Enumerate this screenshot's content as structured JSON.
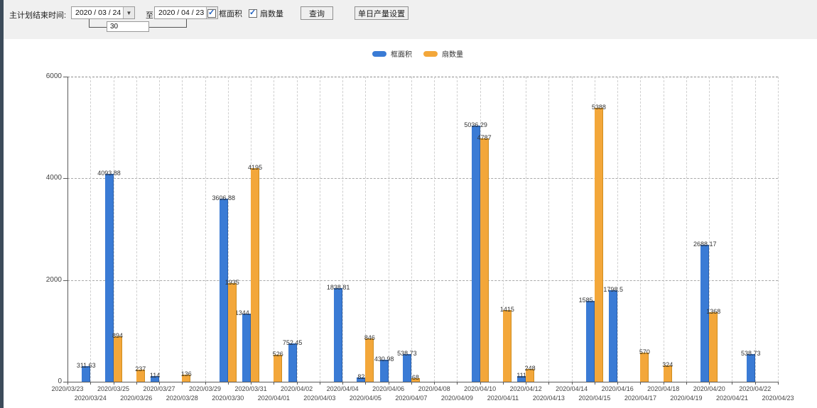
{
  "toolbar": {
    "label": "主计划结束时间:",
    "date_from": "2020 / 03 / 24",
    "to_label": "至:",
    "date_to": "2020 / 04 / 23",
    "days_value": "30",
    "checkbox_area_label": "框面积",
    "checkbox_fan_label": "扇数量",
    "query_button": "查询",
    "daily_output_button": "单日产量设置",
    "dropdown_icon": "▼"
  },
  "colors": {
    "series_area": "#3a7bd5",
    "series_fan": "#f3a73a",
    "left_strip": "#3c4b5a"
  },
  "chart_data": {
    "type": "bar",
    "title": "",
    "xlabel": "",
    "ylabel": "",
    "ylim": [
      0,
      6000
    ],
    "yticks": [
      0,
      2000,
      4000,
      6000
    ],
    "grid": "dashed",
    "legend_position": "top-center",
    "categories": [
      "2020/03/23",
      "2020/03/24",
      "2020/03/25",
      "2020/03/26",
      "2020/03/27",
      "2020/03/28",
      "2020/03/29",
      "2020/03/30",
      "2020/03/31",
      "2020/04/01",
      "2020/04/02",
      "2020/04/03",
      "2020/04/04",
      "2020/04/05",
      "2020/04/06",
      "2020/04/07",
      "2020/04/08",
      "2020/04/09",
      "2020/04/10",
      "2020/04/11",
      "2020/04/12",
      "2020/04/13",
      "2020/04/14",
      "2020/04/15",
      "2020/04/16",
      "2020/04/17",
      "2020/04/18",
      "2020/04/19",
      "2020/04/20",
      "2020/04/21",
      "2020/04/22",
      "2020/04/23"
    ],
    "series": [
      {
        "name": "框面积",
        "color": "#3a7bd5",
        "values": [
          null,
          311.63,
          4093.88,
          null,
          114,
          null,
          null,
          3606.88,
          1344.95,
          null,
          752.45,
          null,
          1838.81,
          82,
          430.98,
          538.73,
          null,
          null,
          5036.29,
          null,
          111,
          null,
          null,
          1585.96,
          1798.5,
          null,
          null,
          null,
          2688.17,
          null,
          538.73,
          null
        ]
      },
      {
        "name": "扇数量",
        "color": "#f3a73a",
        "values": [
          null,
          null,
          894,
          237,
          null,
          136,
          null,
          1935,
          4195,
          526,
          null,
          null,
          null,
          846,
          null,
          68,
          null,
          null,
          4787,
          1415,
          248,
          null,
          null,
          5388,
          null,
          570,
          324,
          null,
          1368,
          null,
          null,
          null
        ]
      }
    ]
  }
}
